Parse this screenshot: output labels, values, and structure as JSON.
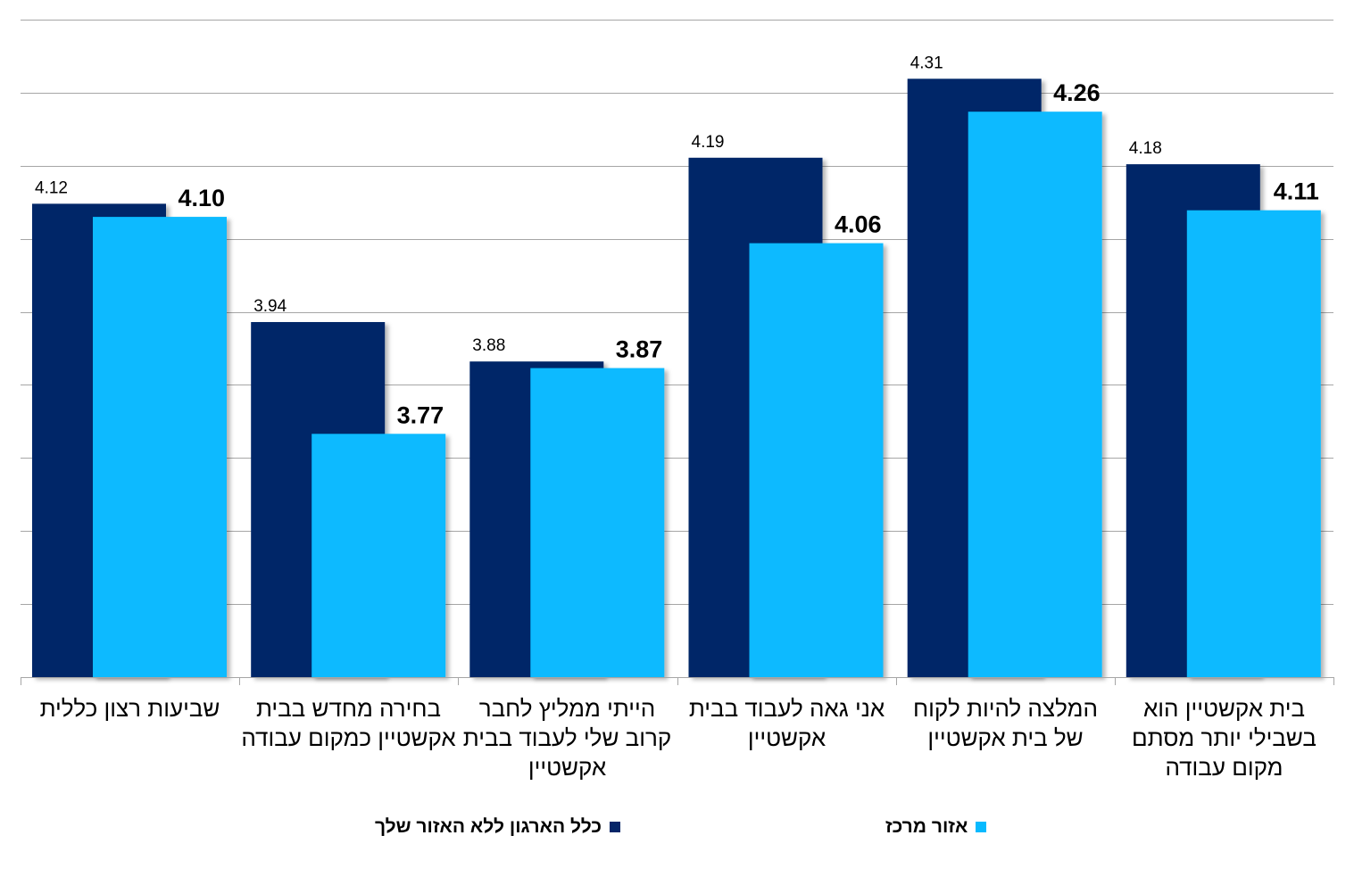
{
  "chart_data": {
    "type": "bar",
    "categories": [
      "שביעות רצון כללית",
      "בחירה מחדש בבית אקשטיין כמקום עבודה",
      "הייתי ממליץ לחבר קרוב שלי לעבוד בבית אקשטיין",
      "אני גאה לעבוד בבית אקשטיין",
      "המלצה להיות לקוח של בית אקשטיין",
      "בית אקשטיין הוא בשבילי יותר מסתם מקום עבודה"
    ],
    "series": [
      {
        "name": "כלל הארגון ללא האזור שלך",
        "color": "#052568",
        "values": [
          4.12,
          3.94,
          3.88,
          4.19,
          4.31,
          4.18
        ],
        "labels": [
          "4.12",
          "3.94",
          "3.88",
          "4.19",
          "4.31",
          "4.18"
        ]
      },
      {
        "name": "אזור מרכז",
        "color": "#08BAFF",
        "values": [
          4.1,
          3.77,
          3.87,
          4.06,
          4.26,
          4.11
        ],
        "labels": [
          "4.10",
          "3.77",
          "3.87",
          "4.06",
          "4.26",
          "4.11"
        ]
      }
    ],
    "ylim": [
      3.4,
      4.4
    ],
    "grid": true,
    "legend_position": "bottom",
    "title": "",
    "xlabel": "",
    "ylabel": ""
  }
}
